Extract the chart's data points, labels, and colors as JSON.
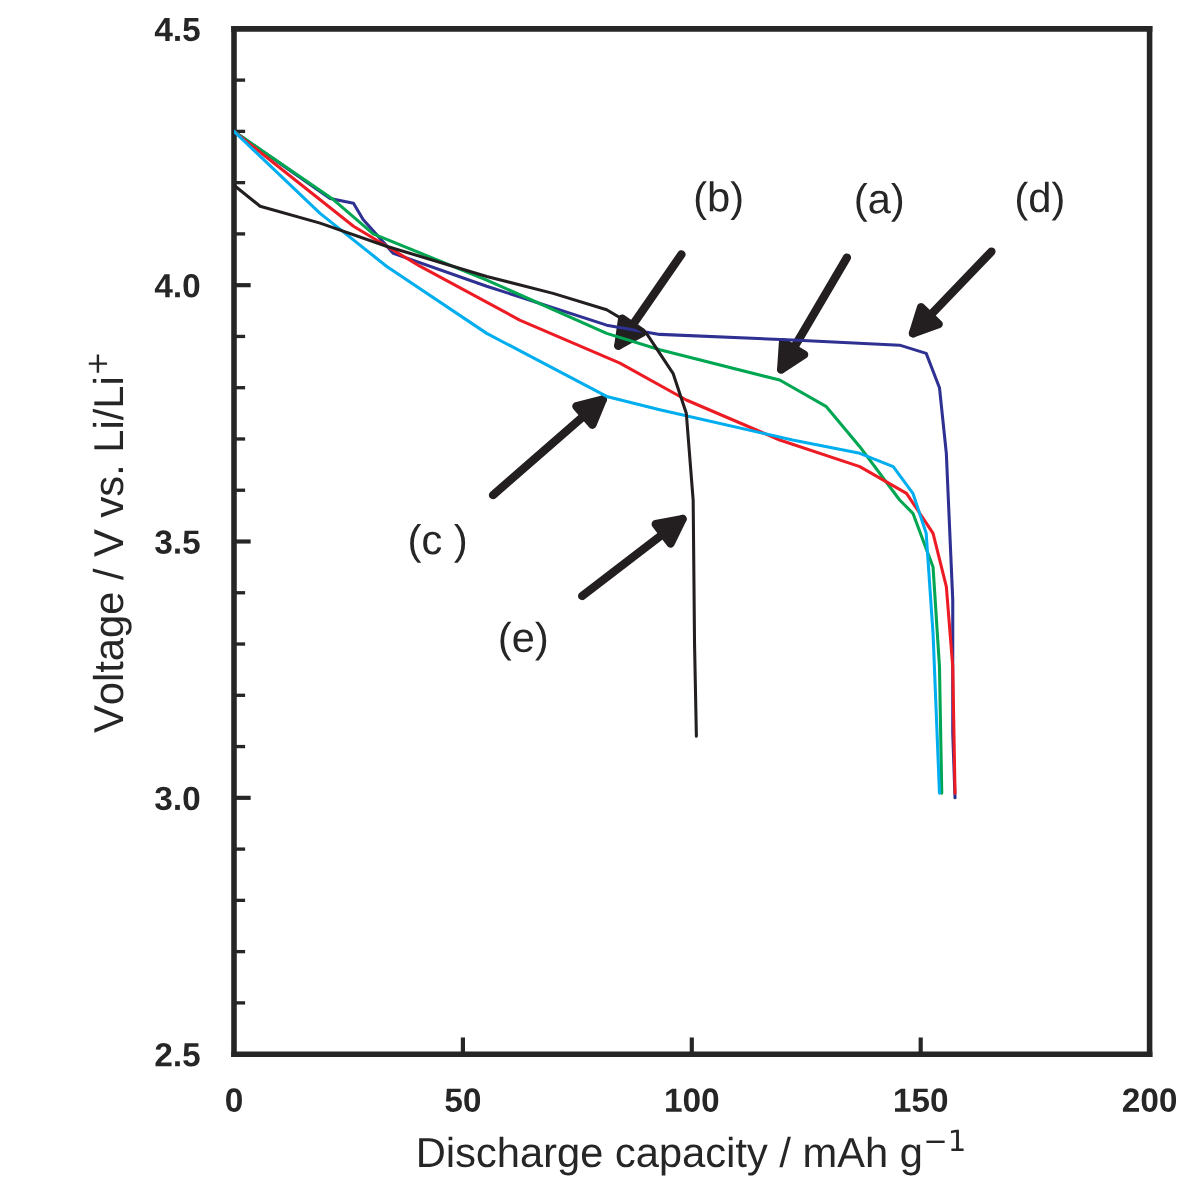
{
  "chart_data": {
    "type": "line",
    "xlabel": "Discharge capacity / mAh g$^{−1}$",
    "ylabel": "Voltage / V vs. Li/Li$^{+}$",
    "xlim": [
      0,
      200
    ],
    "xticks": [
      0,
      50,
      100,
      150,
      200
    ],
    "ylim": [
      2.5,
      4.5
    ],
    "yticks": [
      2.5,
      {
        "value": 3,
        "label": "3.0"
      },
      3.5,
      {
        "value": 4,
        "label": "4.0"
      },
      4.5
    ],
    "grid": false,
    "legend": false,
    "marker": "none",
    "line_style": "solid",
    "series": [
      {
        "color": "#2e3192",
        "x": [
          0,
          21,
          26.1,
          28.2,
          34.8,
          55.2,
          81.4,
          93,
          122,
          145.4,
          151.2,
          154.1,
          155.6,
          157,
          157,
          157.5
        ],
        "values": [
          4.3,
          4.169,
          4.16,
          4.128,
          4.062,
          3.998,
          3.922,
          3.904,
          3.893,
          3.883,
          3.867,
          3.8,
          3.672,
          3.386,
          3.126,
          3.0
        ]
      },
      {
        "color": "#00a651",
        "x": [
          0,
          21.7,
          30.4,
          55.2,
          81.4,
          93,
          119.2,
          129.4,
          136.7,
          145.4,
          148.3,
          152.7,
          154.1,
          154.6
        ],
        "values": [
          4.3,
          4.167,
          4.1,
          4.01,
          3.906,
          3.874,
          3.815,
          3.763,
          3.685,
          3.581,
          3.555,
          3.45,
          3.256,
          3.009
        ]
      },
      {
        "color": "#ed1c24",
        "x": [
          0,
          26.1,
          40.6,
          62.4,
          84.3,
          98.8,
          119.2,
          136.7,
          146.9,
          152.7,
          155.6,
          157,
          157.5
        ],
        "values": [
          4.3,
          4.115,
          4.037,
          3.932,
          3.848,
          3.776,
          3.698,
          3.646,
          3.594,
          3.516,
          3.412,
          3.256,
          3.009
        ]
      },
      {
        "color": "#00aeef",
        "x": [
          0,
          18.8,
          33.3,
          55.2,
          81.4,
          93,
          122,
          136.7,
          144,
          148.3,
          151.2,
          152.7,
          154.1
        ],
        "values": [
          4.3,
          4.14,
          4.037,
          3.906,
          3.783,
          3.757,
          3.698,
          3.672,
          3.646,
          3.594,
          3.516,
          3.32,
          3.009
        ]
      },
      {
        "color": "#231f20",
        "x": [
          0,
          5.7,
          18.8,
          33.3,
          55.2,
          69.7,
          81.4,
          90.1,
          95.9,
          98.8,
          100.3,
          100.6,
          101
        ],
        "values": [
          4.195,
          4.154,
          4.121,
          4.076,
          4.017,
          3.984,
          3.952,
          3.906,
          3.828,
          3.75,
          3.58,
          3.3,
          3.12
        ]
      }
    ],
    "annotations": [
      {
        "text": "(b)",
        "x": 82.8,
        "y": 3.867
      },
      {
        "text": "(a)",
        "x": 118.5,
        "y": 3.82
      },
      {
        "text": "(d)",
        "x": 146.9,
        "y": 3.893
      },
      {
        "text": "(c )",
        "x": 82.1,
        "y": 3.789
      },
      {
        "text": "(e)",
        "x": 99.6,
        "y": 3.555
      }
    ]
  }
}
